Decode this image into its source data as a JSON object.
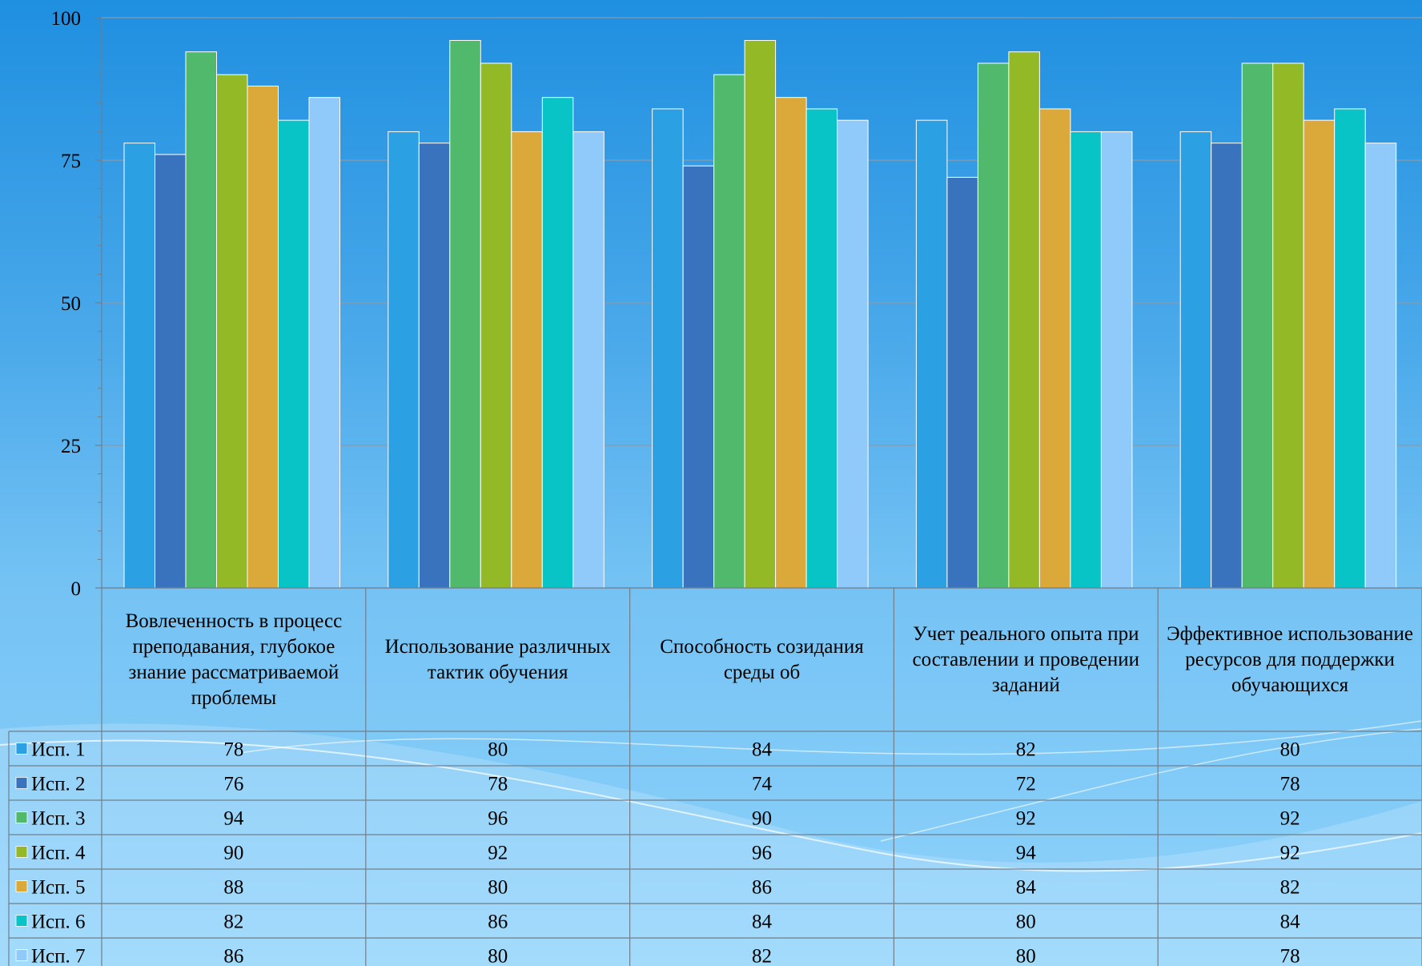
{
  "chart_data": {
    "type": "bar",
    "categories": [
      "Вовлеченность в процесс преподавания, глубокое знание рассматриваемой проблемы",
      "Использование различных тактик обучения",
      "Способность созидания среды об",
      "Учет реального опыта при составлении и проведении заданий",
      "Эффективное использование ресурсов для поддержки обучающихся"
    ],
    "series": [
      {
        "name": "Исп. 1",
        "color": "#2ba0e3",
        "values": [
          78,
          80,
          84,
          82,
          80
        ]
      },
      {
        "name": "Исп. 2",
        "color": "#3a73bd",
        "values": [
          76,
          78,
          74,
          72,
          78
        ]
      },
      {
        "name": "Исп. 3",
        "color": "#50b96b",
        "values": [
          94,
          96,
          90,
          92,
          92
        ]
      },
      {
        "name": "Исп. 4",
        "color": "#93b926",
        "values": [
          90,
          92,
          96,
          94,
          92
        ]
      },
      {
        "name": "Исп. 5",
        "color": "#dba83a",
        "values": [
          88,
          80,
          86,
          84,
          82
        ]
      },
      {
        "name": "Исп. 6",
        "color": "#08c4c6",
        "values": [
          82,
          86,
          84,
          80,
          84
        ]
      },
      {
        "name": "Исп. 7",
        "color": "#8fcafa",
        "values": [
          86,
          80,
          82,
          80,
          78
        ]
      }
    ],
    "yticks": [
      "0",
      "25",
      "50",
      "75",
      "100"
    ],
    "ylim": [
      0,
      100
    ],
    "grid": true,
    "legend": "data-table",
    "title": "",
    "xlabel": "",
    "ylabel": ""
  }
}
